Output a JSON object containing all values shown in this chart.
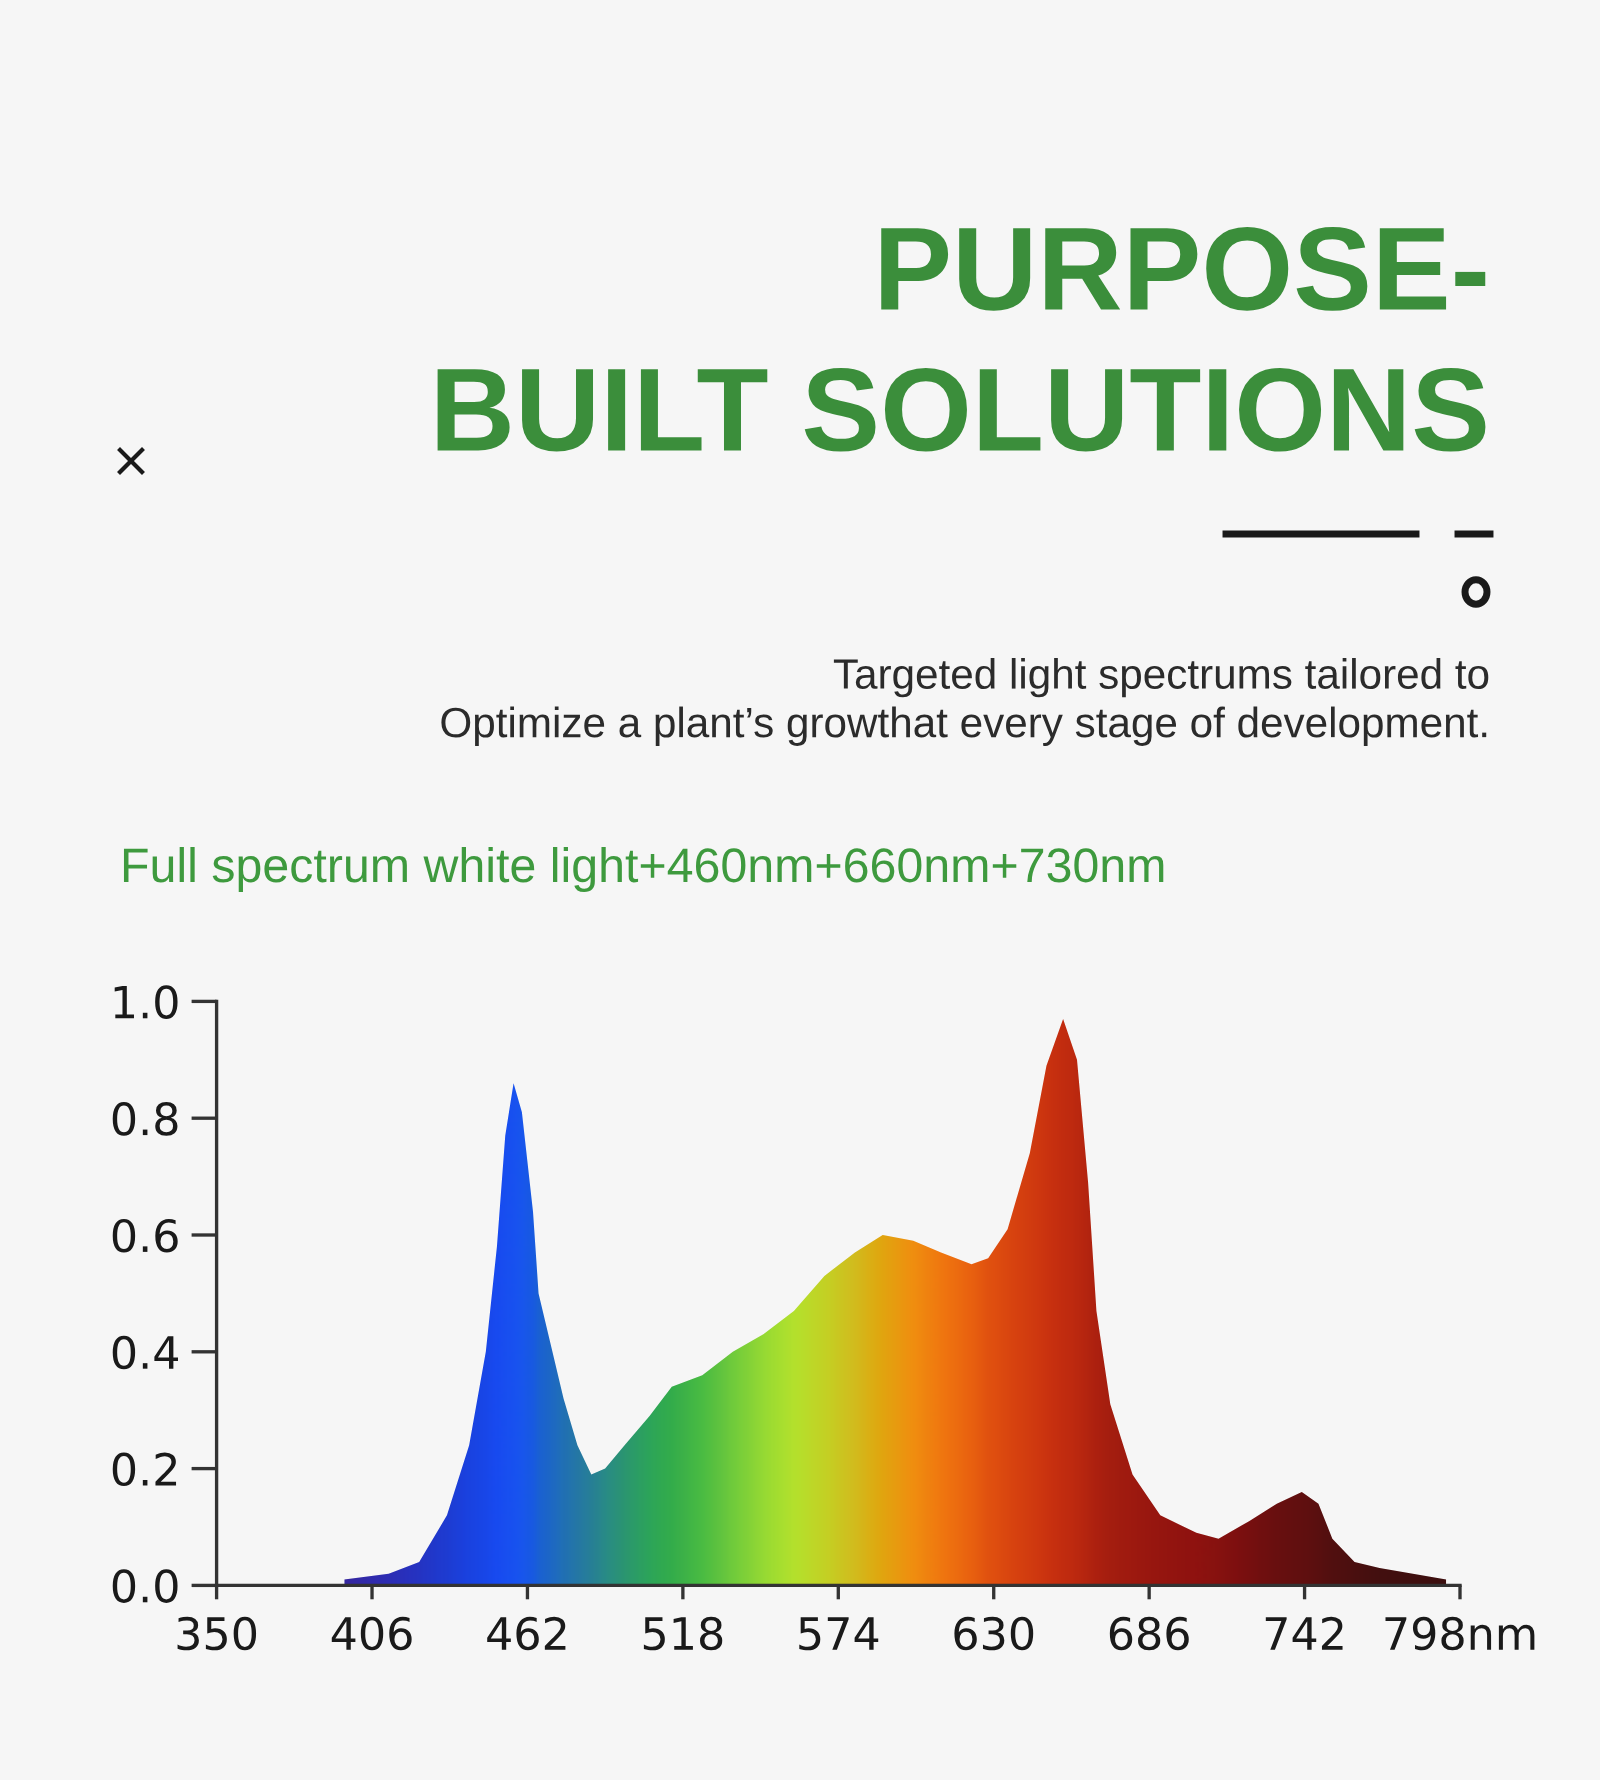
{
  "chart_data": {
    "type": "area",
    "title": "PURPOSE-\nBUILT SOLUTIONS",
    "subtitle": "Targeted light spectrums tailored to\nOptimize a plant’s growthat every stage of development.",
    "annotations": [
      "Full spectrum white light+460nm+660nm+730nm"
    ],
    "series": [
      {
        "x": [
          396,
          412,
          423,
          433,
          441,
          447,
          451,
          454,
          457,
          460,
          464,
          466,
          471,
          475,
          480,
          485,
          490,
          497,
          506,
          514,
          525,
          536,
          547,
          558,
          569,
          580,
          590,
          601,
          611,
          622,
          628,
          635,
          643,
          649,
          655,
          660,
          664,
          667,
          672,
          680,
          690,
          703,
          711,
          722,
          732,
          741,
          747,
          752,
          760,
          769,
          793
        ],
        "values": [
          0.01,
          0.02,
          0.04,
          0.12,
          0.24,
          0.4,
          0.58,
          0.77,
          0.86,
          0.81,
          0.64,
          0.5,
          0.4,
          0.32,
          0.24,
          0.19,
          0.2,
          0.24,
          0.29,
          0.34,
          0.36,
          0.4,
          0.43,
          0.47,
          0.53,
          0.57,
          0.6,
          0.59,
          0.57,
          0.55,
          0.56,
          0.61,
          0.74,
          0.89,
          0.97,
          0.9,
          0.69,
          0.47,
          0.31,
          0.19,
          0.12,
          0.09,
          0.08,
          0.11,
          0.14,
          0.16,
          0.14,
          0.08,
          0.04,
          0.03,
          0.01
        ],
        "colors": [
          "#2a1a9a",
          "#2020b0",
          "#1828c0",
          "#1030d0",
          "#0c38e0",
          "#0a3ce8",
          "#0a40f0",
          "#0a44f0",
          "#0a48f0",
          "#0a4cec",
          "#0a50e0",
          "#0c58d0",
          "#1060c0",
          "#1468b0",
          "#1870a0",
          "#1a7890",
          "#1c8480",
          "#1e9068",
          "#20a050",
          "#28a840",
          "#40b838",
          "#68c830",
          "#90d828",
          "#b0e020",
          "#c0d018",
          "#d0b810",
          "#e0a000",
          "#f08800",
          "#f07000",
          "#e85800",
          "#e04800",
          "#d83c00",
          "#d03000",
          "#c82800",
          "#c02000",
          "#b81c00",
          "#b01800",
          "#a81400",
          "#a01000",
          "#980c00",
          "#900800",
          "#880400",
          "#800400",
          "#700000",
          "#600000",
          "#580000",
          "#500000",
          "#480000",
          "#400000",
          "#380000",
          "#300000"
        ]
      }
    ],
    "xlim": [
      350,
      798
    ],
    "xticks": [
      350,
      406,
      462,
      518,
      574,
      630,
      686,
      742,
      {
        "value": 798,
        "label": "798nm"
      }
    ],
    "ylim": [
      0.0,
      1.0
    ],
    "yticks": [
      {
        "value": 0,
        "label": "0.0"
      },
      0.2,
      0.4,
      0.6,
      0.8,
      {
        "value": 1,
        "label": "1.0"
      }
    ],
    "grid": false
  }
}
